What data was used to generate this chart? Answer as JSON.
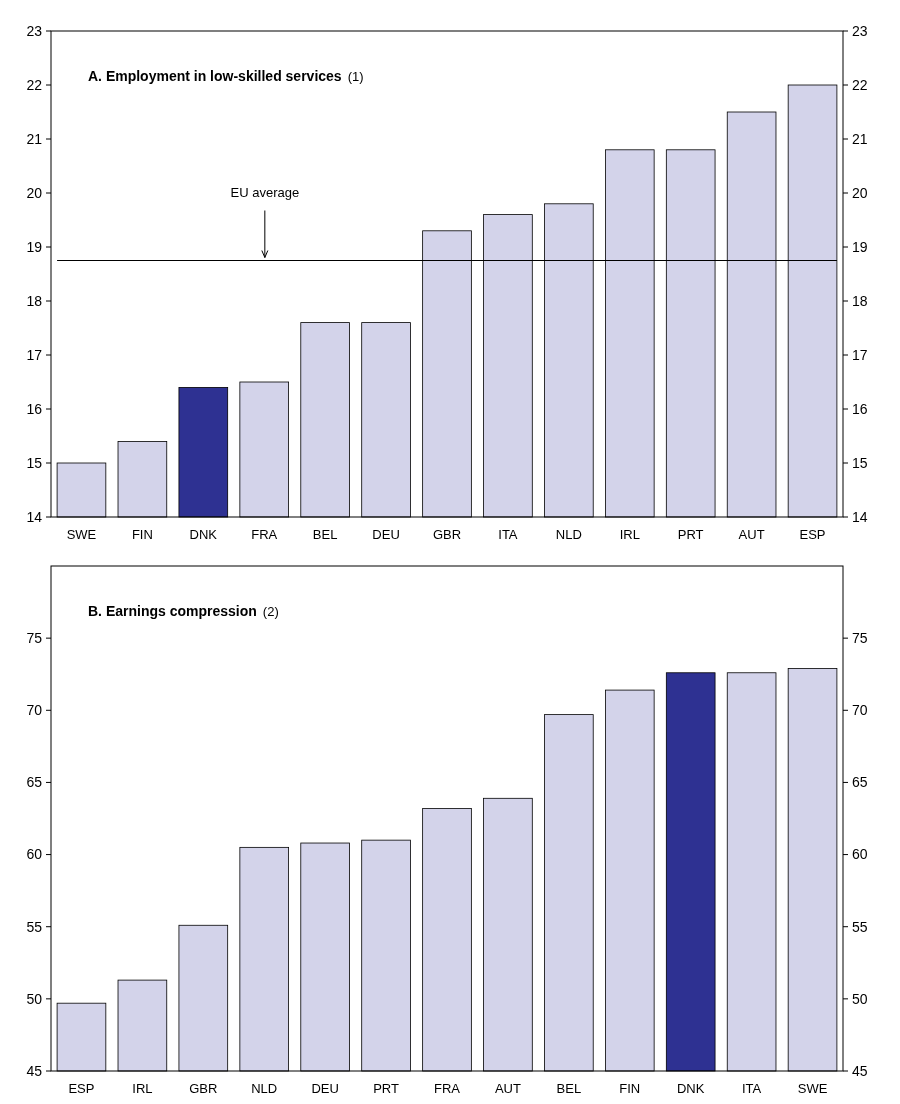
{
  "chart_data": [
    {
      "type": "bar",
      "title": "A. Employment in low-skilled services",
      "subtitle": "(1)",
      "categories": [
        "SWE",
        "FIN",
        "DNK",
        "FRA",
        "BEL",
        "DEU",
        "GBR",
        "ITA",
        "NLD",
        "IRL",
        "PRT",
        "AUT",
        "ESP"
      ],
      "values": [
        15.0,
        15.4,
        16.4,
        16.5,
        17.6,
        17.6,
        19.3,
        19.6,
        19.8,
        20.8,
        20.8,
        21.5,
        22.0
      ],
      "colors": [
        "#d3d3ea",
        "#d3d3ea",
        "#2e3192",
        "#d3d3ea",
        "#d3d3ea",
        "#d3d3ea",
        "#d3d3ea",
        "#d3d3ea",
        "#d3d3ea",
        "#d3d3ea",
        "#d3d3ea",
        "#d3d3ea",
        "#d3d3ea"
      ],
      "ylim": [
        14,
        23
      ],
      "yticks": [
        14,
        15,
        16,
        17,
        18,
        19,
        20,
        21,
        22,
        23
      ],
      "y2lim": [
        14,
        23
      ],
      "y2ticks": [
        14,
        15,
        16,
        17,
        18,
        19,
        20,
        21,
        22,
        23
      ],
      "ref_lines": [
        {
          "axis": "y",
          "value": 18.75,
          "label": "EU average",
          "color": "#000000"
        }
      ],
      "grid": false
    },
    {
      "type": "bar",
      "title": "B. Earnings compression",
      "subtitle": "(2)",
      "categories": [
        "ESP",
        "IRL",
        "GBR",
        "NLD",
        "DEU",
        "PRT",
        "FRA",
        "AUT",
        "BEL",
        "FIN",
        "DNK",
        "ITA",
        "SWE"
      ],
      "values": [
        49.7,
        51.3,
        55.1,
        60.5,
        60.8,
        61.0,
        63.2,
        63.9,
        69.7,
        71.4,
        72.6,
        72.6,
        72.9
      ],
      "colors": [
        "#d3d3ea",
        "#d3d3ea",
        "#d3d3ea",
        "#d3d3ea",
        "#d3d3ea",
        "#d3d3ea",
        "#d3d3ea",
        "#d3d3ea",
        "#d3d3ea",
        "#d3d3ea",
        "#2e3192",
        "#d3d3ea",
        "#d3d3ea"
      ],
      "ylim": [
        45,
        80
      ],
      "yticks": [
        45,
        50,
        55,
        60,
        65,
        70,
        75
      ],
      "y2lim": [
        45,
        80
      ],
      "y2ticks": [
        45,
        50,
        55,
        60,
        65,
        70,
        75
      ],
      "grid": false
    }
  ]
}
